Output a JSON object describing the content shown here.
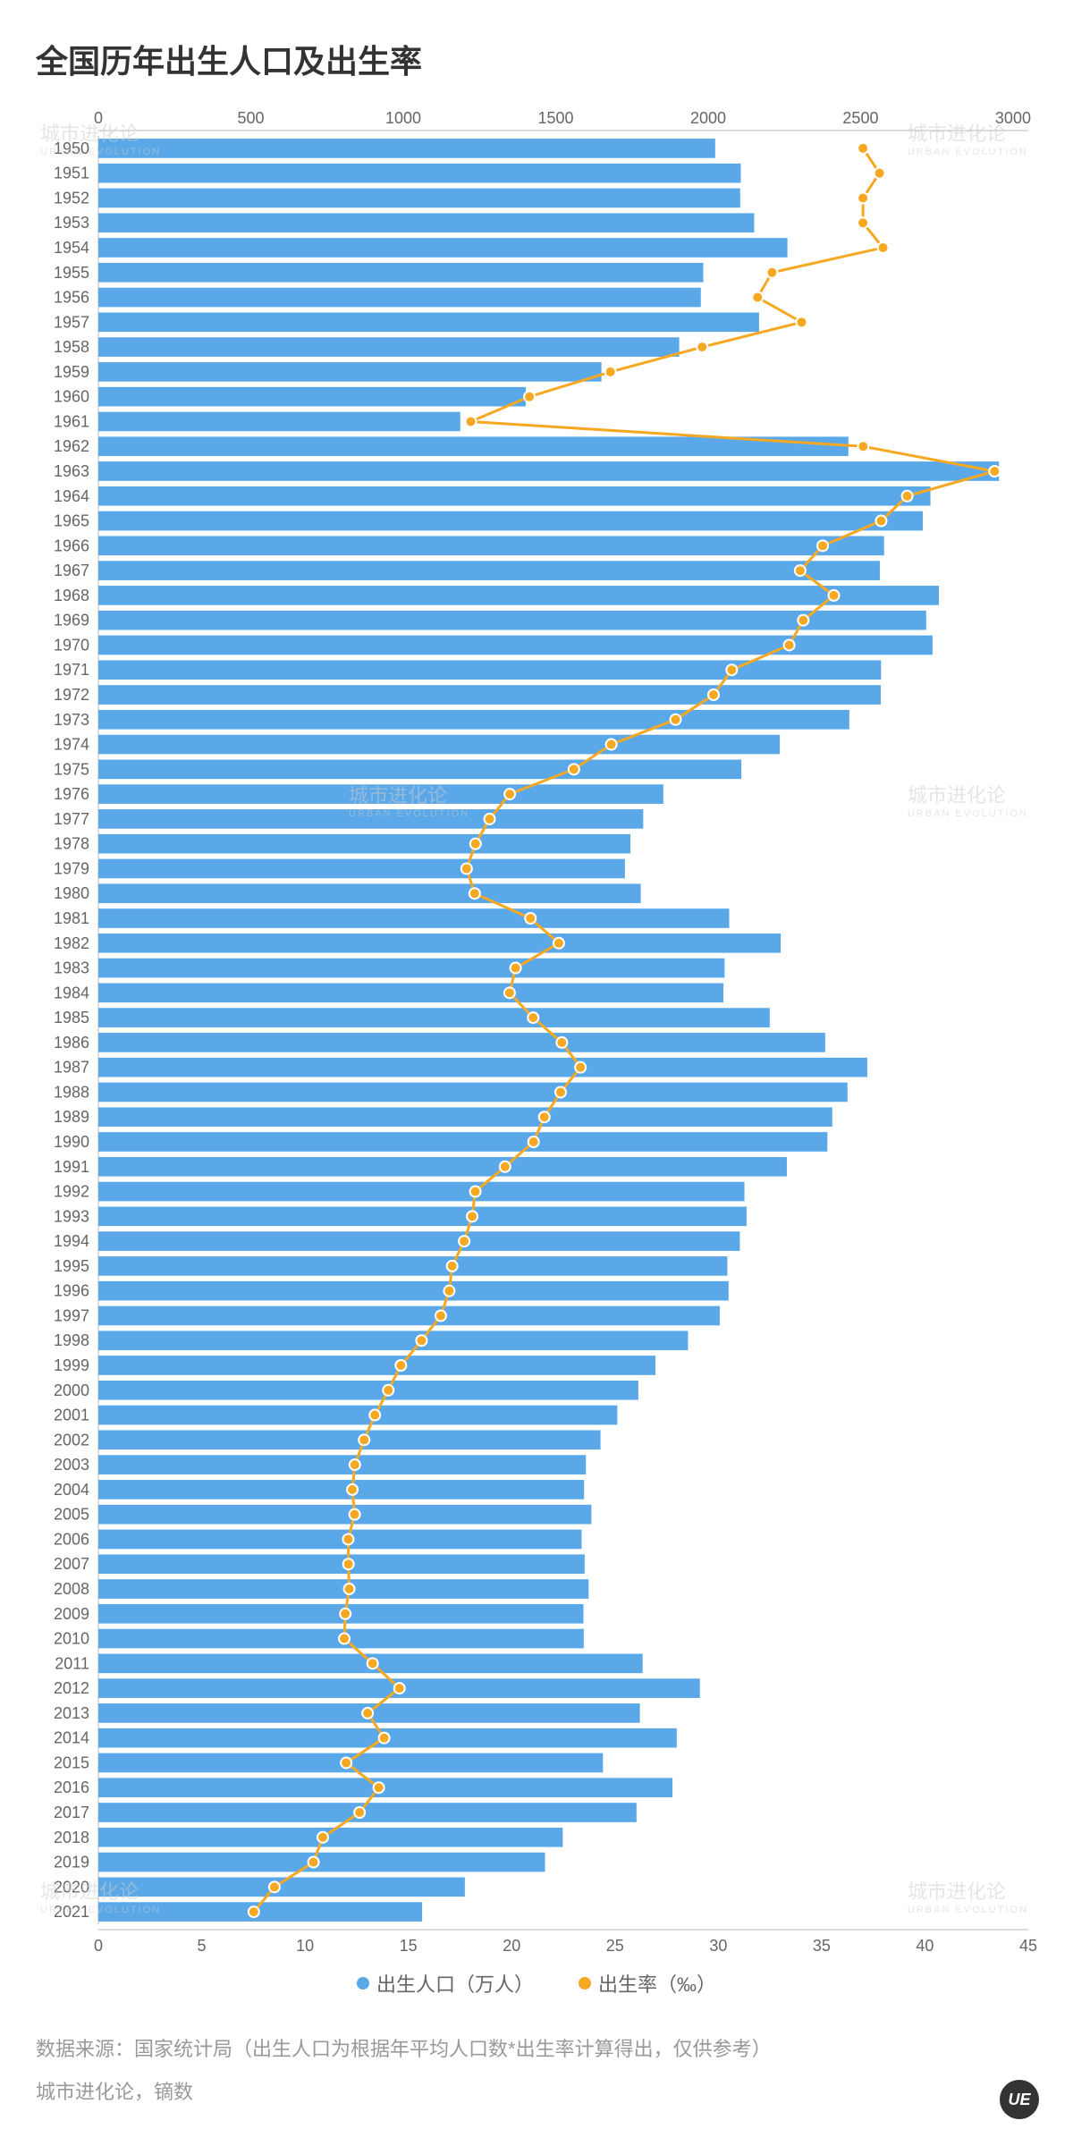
{
  "title": "全国历年出生人口及出生率",
  "chart": {
    "type": "bar+line",
    "background_color": "#ffffff",
    "grid_color": "#e0e0e0",
    "axis_color": "#bbbbbb",
    "axis_fontsize": 18,
    "year_fontsize": 18,
    "text_color": "#666666",
    "top_axis": {
      "label": "出生人口（万人）",
      "min": 0,
      "max": 3050,
      "tick_step": 500,
      "ticks": [
        0,
        500,
        1000,
        1500,
        2000,
        2500,
        3000
      ]
    },
    "bottom_axis": {
      "label": "出生率（‰）",
      "min": 0,
      "max": 45,
      "tick_step": 5,
      "ticks": [
        0,
        5,
        10,
        15,
        20,
        25,
        30,
        35,
        40,
        45
      ]
    },
    "bar_color": "#5aa8e8",
    "line_color": "#f6a823",
    "marker_fill": "#f6a823",
    "marker_stroke": "#ffffff",
    "marker_stroke_width": 2,
    "marker_radius": 6,
    "line_width": 3,
    "bar_height_ratio": 0.78,
    "years": [
      1950,
      1951,
      1952,
      1953,
      1954,
      1955,
      1956,
      1957,
      1958,
      1959,
      1960,
      1961,
      1962,
      1963,
      1964,
      1965,
      1966,
      1967,
      1968,
      1969,
      1970,
      1971,
      1972,
      1973,
      1974,
      1975,
      1976,
      1977,
      1978,
      1979,
      1980,
      1981,
      1982,
      1983,
      1984,
      1985,
      1986,
      1987,
      1988,
      1989,
      1990,
      1991,
      1992,
      1993,
      1994,
      1995,
      1996,
      1997,
      1998,
      1999,
      2000,
      2001,
      2002,
      2003,
      2004,
      2005,
      2006,
      2007,
      2008,
      2009,
      2010,
      2011,
      2012,
      2013,
      2014,
      2015,
      2016,
      2017,
      2018,
      2019,
      2020,
      2021
    ],
    "births": [
      2023,
      2107,
      2105,
      2151,
      2260,
      1984,
      1976,
      2167,
      1905,
      1650,
      1402,
      1187,
      2460,
      2954,
      2729,
      2704,
      2577,
      2563,
      2757,
      2715,
      2736,
      2567,
      2566,
      2463,
      2235,
      2109,
      1853,
      1787,
      1745,
      1727,
      1779,
      2069,
      2238,
      2054,
      2050,
      2202,
      2384,
      2522,
      2457,
      2407,
      2391,
      2258,
      2119,
      2126,
      2104,
      2063,
      2067,
      2038,
      1934,
      1827,
      1771,
      1702,
      1647,
      1599,
      1593,
      1617,
      1585,
      1595,
      1608,
      1591,
      1592,
      1785,
      1973,
      1776,
      1897,
      1655,
      1883,
      1765,
      1523,
      1465,
      1202,
      1062
    ],
    "birth_rate": [
      37.0,
      37.8,
      37.0,
      37.0,
      37.97,
      32.6,
      31.9,
      34.03,
      29.22,
      24.78,
      20.86,
      18.02,
      37.01,
      43.37,
      39.14,
      37.88,
      35.05,
      33.96,
      35.59,
      34.11,
      33.43,
      30.65,
      29.77,
      27.93,
      24.82,
      23.01,
      19.91,
      18.93,
      18.25,
      17.82,
      18.21,
      20.91,
      22.28,
      20.19,
      19.9,
      21.04,
      22.43,
      23.33,
      22.37,
      21.58,
      21.06,
      19.68,
      18.24,
      18.09,
      17.7,
      17.12,
      16.98,
      16.57,
      15.64,
      14.64,
      14.03,
      13.38,
      12.86,
      12.41,
      12.29,
      12.4,
      12.09,
      12.1,
      12.14,
      11.95,
      11.9,
      13.27,
      14.57,
      13.03,
      13.83,
      11.99,
      13.57,
      12.64,
      10.86,
      10.41,
      8.52,
      7.52
    ]
  },
  "legend": {
    "item1": "出生人口（万人）",
    "item2": "出生率（‰）"
  },
  "footer": {
    "source": "数据来源：国家统计局（出生人口为根据年平均人口数*出生率计算得出，仅供参考）",
    "credit": "城市进化论，镝数"
  },
  "watermark": {
    "zh": "城市进化论",
    "en": "URBAN EVOLUTION"
  },
  "badge": "UE"
}
